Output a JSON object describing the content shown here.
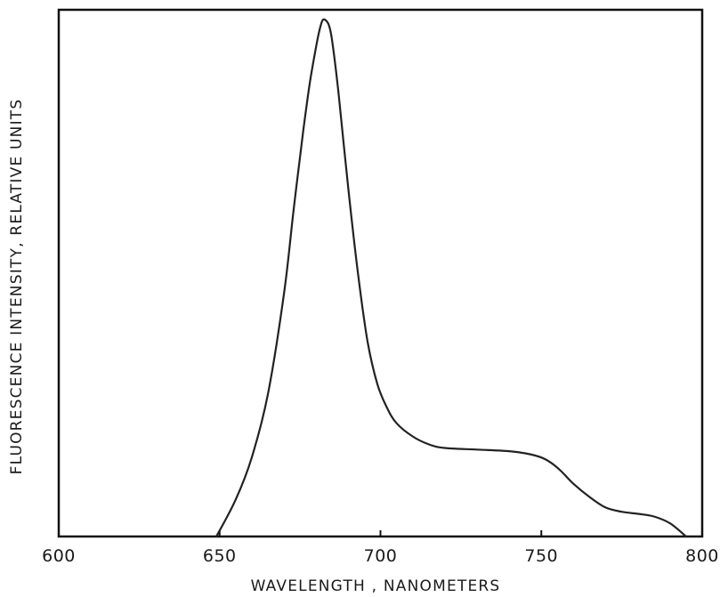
{
  "chart_data": {
    "type": "line",
    "title": "",
    "xlabel": "WAVELENGTH , NANOMETERS",
    "ylabel": "FLUORESCENCE INTENSITY, RELATIVE UNITS",
    "xlim": [
      600,
      800
    ],
    "ylim": [
      0,
      1.0
    ],
    "x_tick_labels": [
      "600",
      "650",
      "700",
      "750",
      "800"
    ],
    "x_tick_values": [
      600,
      650,
      700,
      750,
      800
    ],
    "grid": false,
    "legend": "none",
    "series": [
      {
        "x": [
          649,
          655,
          660,
          665,
          670,
          673,
          676,
          678,
          680,
          681,
          682,
          683,
          684,
          685,
          687,
          690,
          693,
          696,
          699,
          702,
          705,
          710,
          715,
          720,
          730,
          740,
          745,
          750,
          753,
          756,
          760,
          765,
          770,
          775,
          780,
          785,
          790,
          795
        ],
        "y": [
          0.0,
          0.07,
          0.15,
          0.27,
          0.46,
          0.62,
          0.77,
          0.86,
          0.93,
          0.96,
          0.98,
          0.98,
          0.97,
          0.94,
          0.84,
          0.66,
          0.5,
          0.37,
          0.29,
          0.245,
          0.215,
          0.19,
          0.175,
          0.168,
          0.165,
          0.162,
          0.158,
          0.15,
          0.14,
          0.125,
          0.1,
          0.075,
          0.055,
          0.047,
          0.043,
          0.038,
          0.025,
          0.0
        ]
      }
    ],
    "colors": {
      "line": "#222222",
      "axis": "#111111",
      "text": "#1a1a1a"
    }
  }
}
